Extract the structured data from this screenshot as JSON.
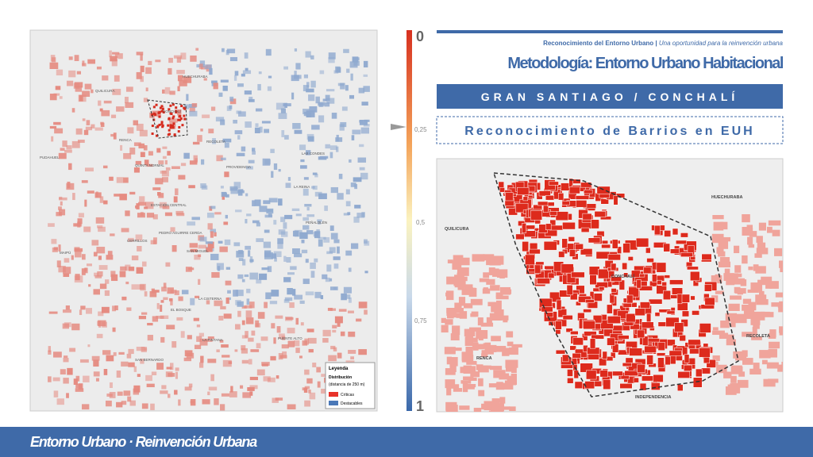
{
  "header": {
    "subtitle_bold": "Reconocimiento del Entorno Urbano |",
    "subtitle_italic": "Una oportunidad para la reinvención urbana",
    "title": "Metodología: Entorno Urbano Habitacional"
  },
  "banner": "GRAN SANTIAGO / CONCHALÍ",
  "section": "Reconocimiento de Barrios en EUH",
  "scale": {
    "labels": [
      "0",
      "0,25",
      "0,5",
      "0,75",
      "1"
    ]
  },
  "left_map": {
    "places": [
      "QUILICURA",
      "HUECHURABA",
      "CONCHALÍ",
      "RENCA",
      "RECOLETA",
      "PUDAHUEL",
      "QUINTA NORMAL",
      "PROVIDENCIA",
      "LAS CONDES",
      "LA REINA",
      "ESTACIÓN CENTRAL",
      "PEÑALOLÉN",
      "PEDRO AGUIRRE CERDA",
      "CERRILLOS",
      "SAN MIGUEL",
      "MAIPÚ",
      "LA CISTERNA",
      "EL BOSQUE",
      "LA PINTANA",
      "PUENTE ALTO",
      "SAN BERNARDO"
    ],
    "legend": {
      "title": "Leyenda",
      "subtitle": "Distribución",
      "note": "(distancia de 250 m)",
      "items": [
        "Críticas",
        "Destacables"
      ]
    }
  },
  "right_map": {
    "places": [
      "QUILICURA",
      "HUECHURABA",
      "CONCHALÍ",
      "RENCA",
      "RECOLETA",
      "INDEPENDENCIA"
    ]
  },
  "footer": "Entorno Urbano · Reinvención Urbana"
}
